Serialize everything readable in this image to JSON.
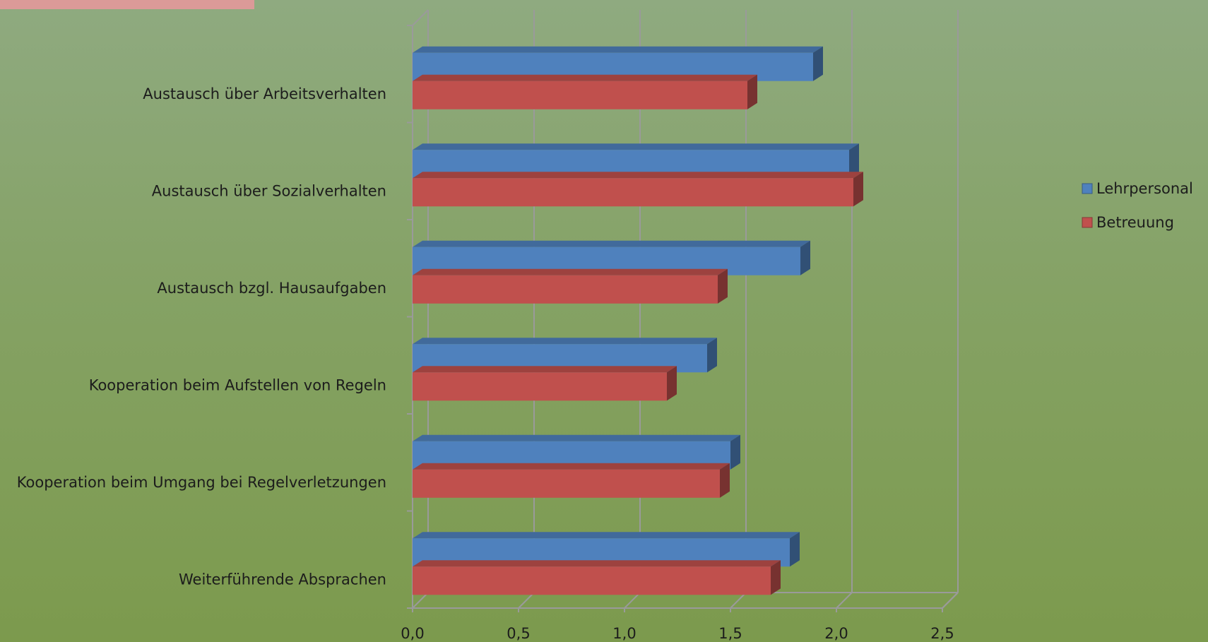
{
  "chart_data": {
    "type": "bar",
    "orientation": "horizontal",
    "style": "3d",
    "categories": [
      "Austausch über Arbeitsverhalten",
      "Austausch über Sozialverhalten",
      "Austausch bzgl. Hausaufgaben",
      "Kooperation beim Aufstellen von Regeln",
      "Kooperation beim Umgang bei Regelverletzungen",
      "Weiterführende Absprachen"
    ],
    "series": [
      {
        "name": "Lehrpersonal",
        "color": "#4f81bd",
        "values": [
          1.89,
          2.06,
          1.83,
          1.39,
          1.5,
          1.78
        ]
      },
      {
        "name": "Betreuung",
        "color": "#c0504d",
        "values": [
          1.58,
          2.08,
          1.44,
          1.2,
          1.45,
          1.69
        ]
      }
    ],
    "xlim": [
      0,
      2.5
    ],
    "xticks": [
      "0,0",
      "0,5",
      "1,0",
      "1,5",
      "2,0",
      "2,5"
    ],
    "grid": true,
    "legend": "right",
    "title": "",
    "xlabel": "",
    "ylabel": ""
  }
}
